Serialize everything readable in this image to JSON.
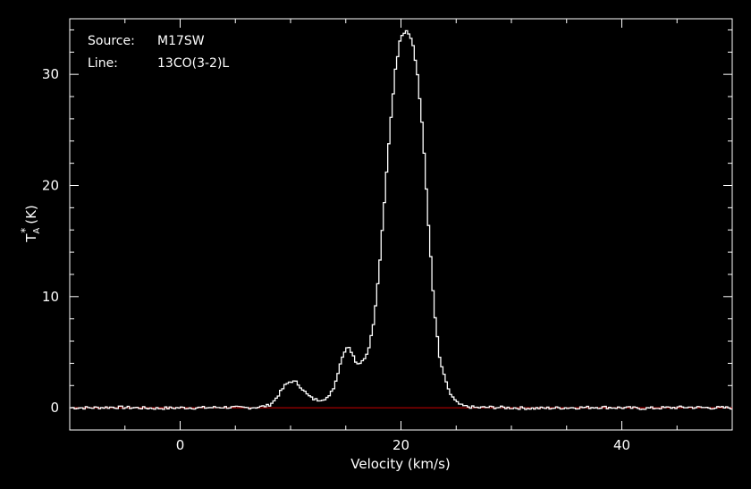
{
  "annotations": {
    "source_label": "Source:",
    "source_value": "M17SW",
    "line_label": "Line:",
    "line_value": "13CO(3-2)L"
  },
  "chart_data": {
    "type": "line",
    "step": true,
    "xlabel": "Velocity (km/s)",
    "ylabel": "T",
    "ylabel_sub": "A",
    "ylabel_sup": "*",
    "ylabel_unit": "(K)",
    "xlim": [
      -10,
      50
    ],
    "ylim": [
      -2,
      35
    ],
    "x_ticks": [
      0,
      20,
      40
    ],
    "x_tick_labels": [
      "0",
      "20",
      "40"
    ],
    "y_ticks": [
      0,
      10,
      20,
      30
    ],
    "y_tick_labels": [
      "0",
      "10",
      "20",
      "30"
    ],
    "grid": false,
    "colors": {
      "background": "#000000",
      "axes": "#ffffff",
      "series": "#ffffff",
      "baseline": "#cc0000"
    },
    "series": [
      {
        "x": [
          -10,
          -8,
          -6,
          -4,
          -2,
          0,
          2,
          4,
          6,
          7,
          8,
          8.5,
          9,
          9.5,
          10,
          10.5,
          11,
          11.5,
          12,
          12.5,
          13,
          13.5,
          14,
          14.5,
          15,
          15.3,
          15.6,
          16,
          16.5,
          17,
          17.5,
          18,
          18.5,
          19,
          19.5,
          20,
          20.5,
          21,
          21.5,
          22,
          22.5,
          23,
          23.5,
          24,
          24.5,
          25,
          25.5,
          26,
          27,
          28,
          30,
          32,
          35,
          38,
          40,
          42,
          44,
          46,
          48,
          50
        ],
        "y": [
          0,
          0,
          0.05,
          0,
          -0.05,
          0,
          0,
          0.05,
          0,
          0.05,
          0.2,
          0.6,
          1.3,
          2.0,
          2.4,
          2.3,
          1.8,
          1.2,
          0.8,
          0.7,
          0.8,
          1.0,
          2.0,
          4.0,
          5.4,
          5.5,
          4.8,
          4.0,
          4.2,
          5.0,
          7.5,
          12.0,
          18.5,
          25.0,
          30.5,
          33.5,
          34.0,
          33.2,
          30.0,
          24.5,
          16.5,
          9.0,
          4.5,
          2.5,
          1.2,
          0.5,
          0.2,
          0.1,
          0,
          0.05,
          0,
          -0.05,
          0,
          0.05,
          0,
          -0.05,
          0,
          0.05,
          0,
          0
        ]
      }
    ],
    "baseline": 0
  }
}
